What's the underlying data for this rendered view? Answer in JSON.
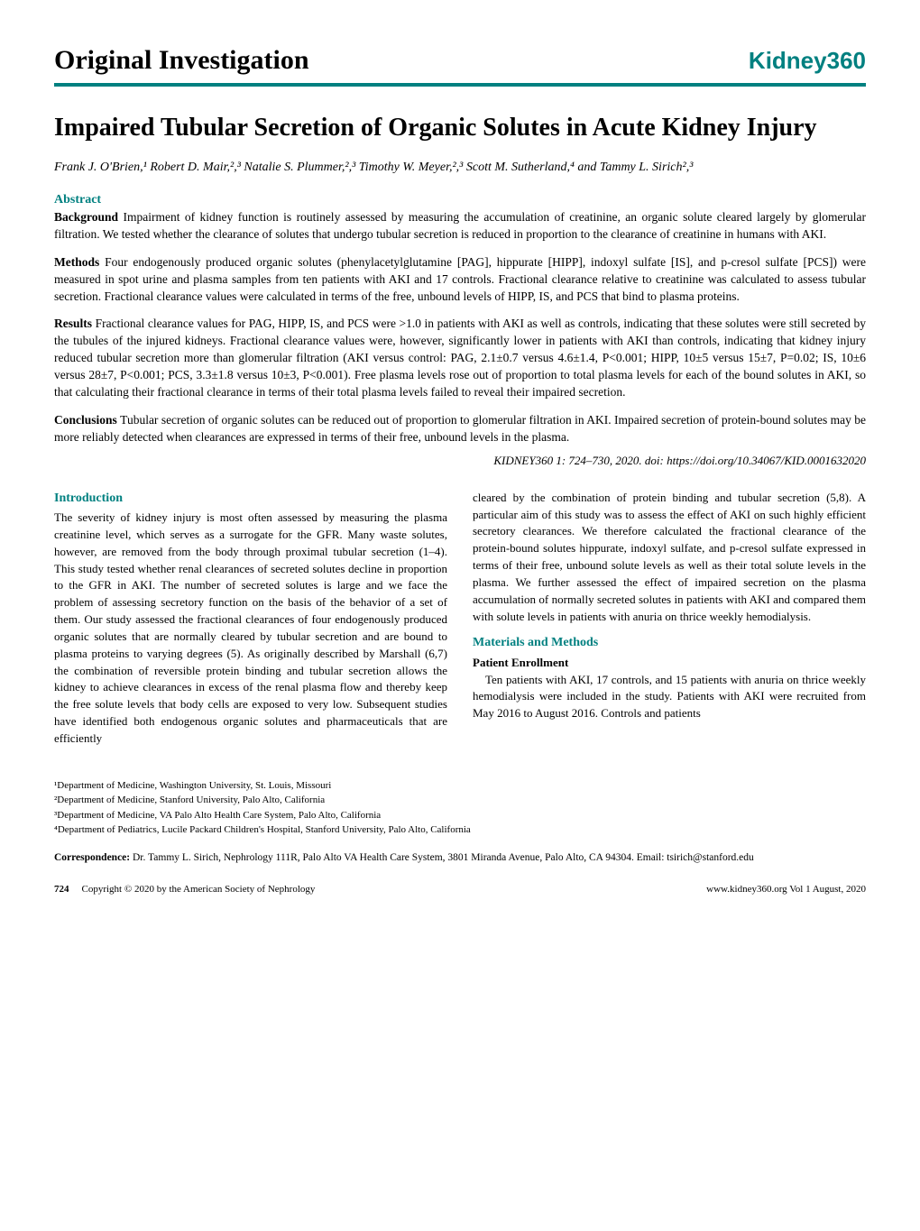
{
  "header": {
    "section_label": "Original Investigation",
    "journal_brand": "Kidney360"
  },
  "colors": {
    "accent": "#008080",
    "text": "#000000",
    "background": "#ffffff"
  },
  "article": {
    "title": "Impaired Tubular Secretion of Organic Solutes in Acute Kidney Injury",
    "authors_html": "Frank J. O'Brien,¹ Robert D. Mair,²,³ Natalie S. Plummer,²,³ Timothy W. Meyer,²,³ Scott M. Sutherland,⁴ and Tammy L. Sirich²,³"
  },
  "abstract": {
    "heading": "Abstract",
    "background": {
      "label": "Background",
      "text": "Impairment of kidney function is routinely assessed by measuring the accumulation of creatinine, an organic solute cleared largely by glomerular filtration. We tested whether the clearance of solutes that undergo tubular secretion is reduced in proportion to the clearance of creatinine in humans with AKI."
    },
    "methods": {
      "label": "Methods",
      "text": "Four endogenously produced organic solutes (phenylacetylglutamine [PAG], hippurate [HIPP], indoxyl sulfate [IS], and p-cresol sulfate [PCS]) were measured in spot urine and plasma samples from ten patients with AKI and 17 controls. Fractional clearance relative to creatinine was calculated to assess tubular secretion. Fractional clearance values were calculated in terms of the free, unbound levels of HIPP, IS, and PCS that bind to plasma proteins."
    },
    "results": {
      "label": "Results",
      "text": "Fractional clearance values for PAG, HIPP, IS, and PCS were >1.0 in patients with AKI as well as controls, indicating that these solutes were still secreted by the tubules of the injured kidneys. Fractional clearance values were, however, significantly lower in patients with AKI than controls, indicating that kidney injury reduced tubular secretion more than glomerular filtration (AKI versus control: PAG, 2.1±0.7 versus 4.6±1.4, P<0.001; HIPP, 10±5 versus 15±7, P=0.02; IS, 10±6 versus 28±7, P<0.001; PCS, 3.3±1.8 versus 10±3, P<0.001). Free plasma levels rose out of proportion to total plasma levels for each of the bound solutes in AKI, so that calculating their fractional clearance in terms of their total plasma levels failed to reveal their impaired secretion."
    },
    "conclusions": {
      "label": "Conclusions",
      "text": "Tubular secretion of organic solutes can be reduced out of proportion to glomerular filtration in AKI. Impaired secretion of protein-bound solutes may be more reliably detected when clearances are expressed in terms of their free, unbound levels in the plasma."
    },
    "citation": "KIDNEY360 1: 724–730, 2020. doi: https://doi.org/10.34067/KID.0001632020"
  },
  "body": {
    "introduction": {
      "heading": "Introduction",
      "col1_para": "The severity of kidney injury is most often assessed by measuring the plasma creatinine level, which serves as a surrogate for the GFR. Many waste solutes, however, are removed from the body through proximal tubular secretion (1–4). This study tested whether renal clearances of secreted solutes decline in proportion to the GFR in AKI. The number of secreted solutes is large and we face the problem of assessing secretory function on the basis of the behavior of a set of them. Our study assessed the fractional clearances of four endogenously produced organic solutes that are normally cleared by tubular secretion and are bound to plasma proteins to varying degrees (5). As originally described by Marshall (6,7) the combination of reversible protein binding and tubular secretion allows the kidney to achieve clearances in excess of the renal plasma flow and thereby keep the free solute levels that body cells are exposed to very low. Subsequent studies have identified both endogenous organic solutes and pharmaceuticals that are efficiently",
      "col2_para1": "cleared by the combination of protein binding and tubular secretion (5,8). A particular aim of this study was to assess the effect of AKI on such highly efficient secretory clearances. We therefore calculated the fractional clearance of the protein-bound solutes hippurate, indoxyl sulfate, and p-cresol sulfate expressed in terms of their free, unbound solute levels as well as their total solute levels in the plasma. We further assessed the effect of impaired secretion on the plasma accumulation of normally secreted solutes in patients with AKI and compared them with solute levels in patients with anuria on thrice weekly hemodialysis."
    },
    "materials": {
      "heading": "Materials and Methods",
      "subheading": "Patient Enrollment",
      "indent_text": "Ten patients with AKI, 17 controls, and 15 patients with anuria on thrice weekly hemodialysis were included in the study. Patients with AKI were recruited from May 2016 to August 2016. Controls and patients"
    }
  },
  "affiliations": [
    "¹Department of Medicine, Washington University, St. Louis, Missouri",
    "²Department of Medicine, Stanford University, Palo Alto, California",
    "³Department of Medicine, VA Palo Alto Health Care System, Palo Alto, California",
    "⁴Department of Pediatrics, Lucile Packard Children's Hospital, Stanford University, Palo Alto, California"
  ],
  "correspondence": {
    "label": "Correspondence:",
    "text": "Dr. Tammy L. Sirich, Nephrology 111R, Palo Alto VA Health Care System, 3801 Miranda Avenue, Palo Alto, CA 94304. Email: tsirich@stanford.edu"
  },
  "footer": {
    "page": "724",
    "copyright": "Copyright © 2020 by the American Society of Nephrology",
    "site": "www.kidney360.org",
    "issue": "Vol 1 August, 2020"
  }
}
